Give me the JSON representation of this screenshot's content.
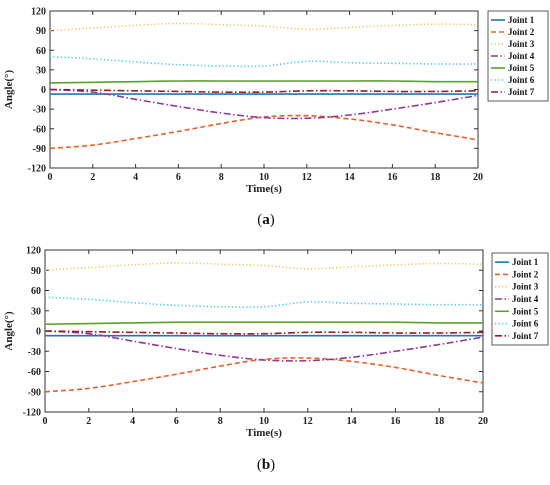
{
  "colors": {
    "Joint 1": "#1f77b4",
    "Joint 2": "#e8602c",
    "Joint 3": "#f2c45a",
    "Joint 4": "#8e3b94",
    "Joint 5": "#5aa02c",
    "Joint 6": "#3ec8ee",
    "Joint 7": "#9b1c2e"
  },
  "chart_data": [
    {
      "type": "line",
      "panel_label": "(a)",
      "xlabel": "Time(s)",
      "ylabel": "Angle(°)",
      "xlim": [
        0,
        20
      ],
      "ylim": [
        -120,
        120
      ],
      "xticks": [
        0,
        2,
        4,
        6,
        8,
        10,
        12,
        14,
        16,
        18,
        20
      ],
      "yticks": [
        -120,
        -90,
        -60,
        -30,
        0,
        30,
        60,
        90,
        120
      ],
      "grid": false,
      "legend": "top-right",
      "x": [
        0,
        2,
        4,
        6,
        8,
        10,
        12,
        14,
        16,
        18,
        20
      ],
      "series": [
        {
          "name": "Joint 1",
          "style": "solid",
          "values": [
            -7,
            -7,
            -7,
            -7,
            -7,
            -7,
            -7,
            -7,
            -7,
            -7,
            -7
          ]
        },
        {
          "name": "Joint 2",
          "style": "dashed",
          "values": [
            -90,
            -85,
            -75,
            -64,
            -52,
            -42,
            -40,
            -45,
            -54,
            -66,
            -77
          ]
        },
        {
          "name": "Joint 3",
          "style": "dotted",
          "values": [
            90,
            94,
            98,
            101,
            99,
            97,
            92,
            95,
            98,
            100,
            99
          ]
        },
        {
          "name": "Joint 4",
          "style": "dashdot",
          "values": [
            0,
            -4,
            -15,
            -26,
            -36,
            -43,
            -44,
            -39,
            -30,
            -20,
            -9
          ]
        },
        {
          "name": "Joint 5",
          "style": "solid",
          "values": [
            10,
            11,
            12,
            13,
            13,
            13,
            13,
            13,
            13,
            12,
            12
          ]
        },
        {
          "name": "Joint 6",
          "style": "dotted",
          "values": [
            50,
            47,
            42,
            38,
            36,
            36,
            43,
            41,
            40,
            39,
            39
          ]
        },
        {
          "name": "Joint 7",
          "style": "dashdot",
          "values": [
            0,
            -1,
            -2,
            -3,
            -4,
            -4,
            -2,
            -2,
            -3,
            -3,
            -2
          ]
        }
      ]
    },
    {
      "type": "line",
      "panel_label": "(b)",
      "xlabel": "Time(s)",
      "ylabel": "Angle(°)",
      "xlim": [
        0,
        20
      ],
      "ylim": [
        -120,
        120
      ],
      "xticks": [
        0,
        2,
        4,
        6,
        8,
        10,
        12,
        14,
        16,
        18,
        20
      ],
      "yticks": [
        -120,
        -90,
        -60,
        -30,
        0,
        30,
        60,
        90,
        120
      ],
      "grid": false,
      "legend": "top-right",
      "x": [
        0,
        2,
        4,
        6,
        8,
        10,
        12,
        14,
        16,
        18,
        20
      ],
      "series": [
        {
          "name": "Joint 1",
          "style": "solid",
          "values": [
            -7,
            -7,
            -7,
            -7,
            -7,
            -7,
            -7,
            -7,
            -7,
            -7,
            -7
          ]
        },
        {
          "name": "Joint 2",
          "style": "dashed",
          "values": [
            -90,
            -85,
            -75,
            -64,
            -52,
            -42,
            -40,
            -45,
            -54,
            -66,
            -77
          ]
        },
        {
          "name": "Joint 3",
          "style": "dotted",
          "values": [
            90,
            94,
            98,
            101,
            99,
            97,
            92,
            95,
            98,
            100,
            99
          ]
        },
        {
          "name": "Joint 4",
          "style": "dashdot",
          "values": [
            0,
            -4,
            -15,
            -26,
            -36,
            -43,
            -44,
            -39,
            -30,
            -20,
            -9
          ]
        },
        {
          "name": "Joint 5",
          "style": "solid",
          "values": [
            10,
            11,
            12,
            13,
            13,
            13,
            13,
            13,
            13,
            12,
            12
          ]
        },
        {
          "name": "Joint 6",
          "style": "dotted",
          "values": [
            50,
            47,
            42,
            38,
            36,
            36,
            43,
            41,
            40,
            39,
            39
          ]
        },
        {
          "name": "Joint 7",
          "style": "dashdot",
          "values": [
            0,
            -1,
            -2,
            -3,
            -4,
            -4,
            -2,
            -2,
            -3,
            -3,
            -2
          ]
        }
      ]
    }
  ]
}
